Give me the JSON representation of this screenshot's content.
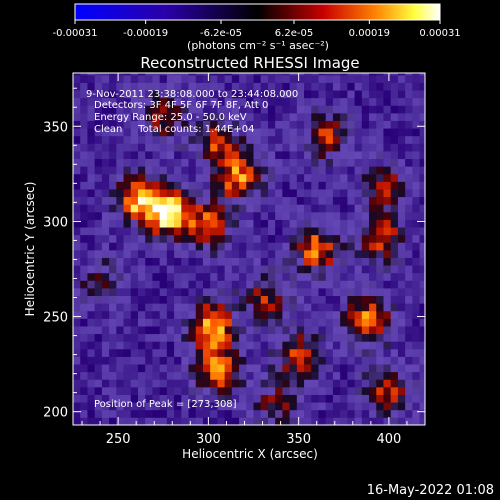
{
  "colorbar": {
    "tick_labels": [
      "-0.00031",
      "-0.00019",
      "-6.2e-05",
      "6.2e-05",
      "0.00019",
      "0.00031"
    ],
    "tick_values": [
      -0.00031,
      -0.00019,
      -6.2e-05,
      6.2e-05,
      0.00019,
      0.00031
    ],
    "range": [
      -0.00031,
      0.00031
    ],
    "unit_label": "(photons cm⁻² s⁻¹ asec⁻²)"
  },
  "chart_data": {
    "type": "heatmap",
    "title": "Reconstructed RHESSI Image",
    "xlabel": "Heliocentric X (arcsec)",
    "ylabel": "Heliocentric Y (arcsec)",
    "xlim": [
      225,
      420
    ],
    "ylim": [
      193,
      378
    ],
    "x_ticks": [
      250,
      300,
      350,
      400
    ],
    "y_ticks": [
      200,
      250,
      300,
      350
    ],
    "annotations": [
      "9-Nov-2011 23:38:08.000 to 23:44:08.000",
      "Detectors: 3F 4F 5F 6F 7F 8F, Att 0",
      "Energy Range: 25.0 - 50.0 keV",
      "Clean     Total counts: 1.44E+04"
    ],
    "peak_label": "Position of Peak = [273,308]",
    "peak_position": [
      273,
      308
    ],
    "hotspots": [
      {
        "x": 278,
        "y": 305,
        "intensity": 0.0003
      },
      {
        "x": 260,
        "y": 312,
        "intensity": 0.00024
      },
      {
        "x": 300,
        "y": 298,
        "intensity": 0.0002
      },
      {
        "x": 317,
        "y": 323,
        "intensity": 0.00022
      },
      {
        "x": 305,
        "y": 342,
        "intensity": 0.00018
      },
      {
        "x": 275,
        "y": 355,
        "intensity": 0.00016
      },
      {
        "x": 365,
        "y": 345,
        "intensity": 0.00017
      },
      {
        "x": 360,
        "y": 285,
        "intensity": 0.00022
      },
      {
        "x": 395,
        "y": 292,
        "intensity": 0.0002
      },
      {
        "x": 398,
        "y": 318,
        "intensity": 0.00016
      },
      {
        "x": 302,
        "y": 245,
        "intensity": 0.00026
      },
      {
        "x": 305,
        "y": 222,
        "intensity": 0.00022
      },
      {
        "x": 350,
        "y": 230,
        "intensity": 0.00018
      },
      {
        "x": 388,
        "y": 248,
        "intensity": 0.00024
      },
      {
        "x": 400,
        "y": 212,
        "intensity": 0.00018
      },
      {
        "x": 332,
        "y": 260,
        "intensity": 0.00016
      },
      {
        "x": 240,
        "y": 268,
        "intensity": 0.00012
      },
      {
        "x": 338,
        "y": 205,
        "intensity": 0.00014
      }
    ],
    "color_table": "RHESSI blue-black-red-yellow-white"
  },
  "footer": {
    "timestamp": "16-May-2022 01:08"
  }
}
